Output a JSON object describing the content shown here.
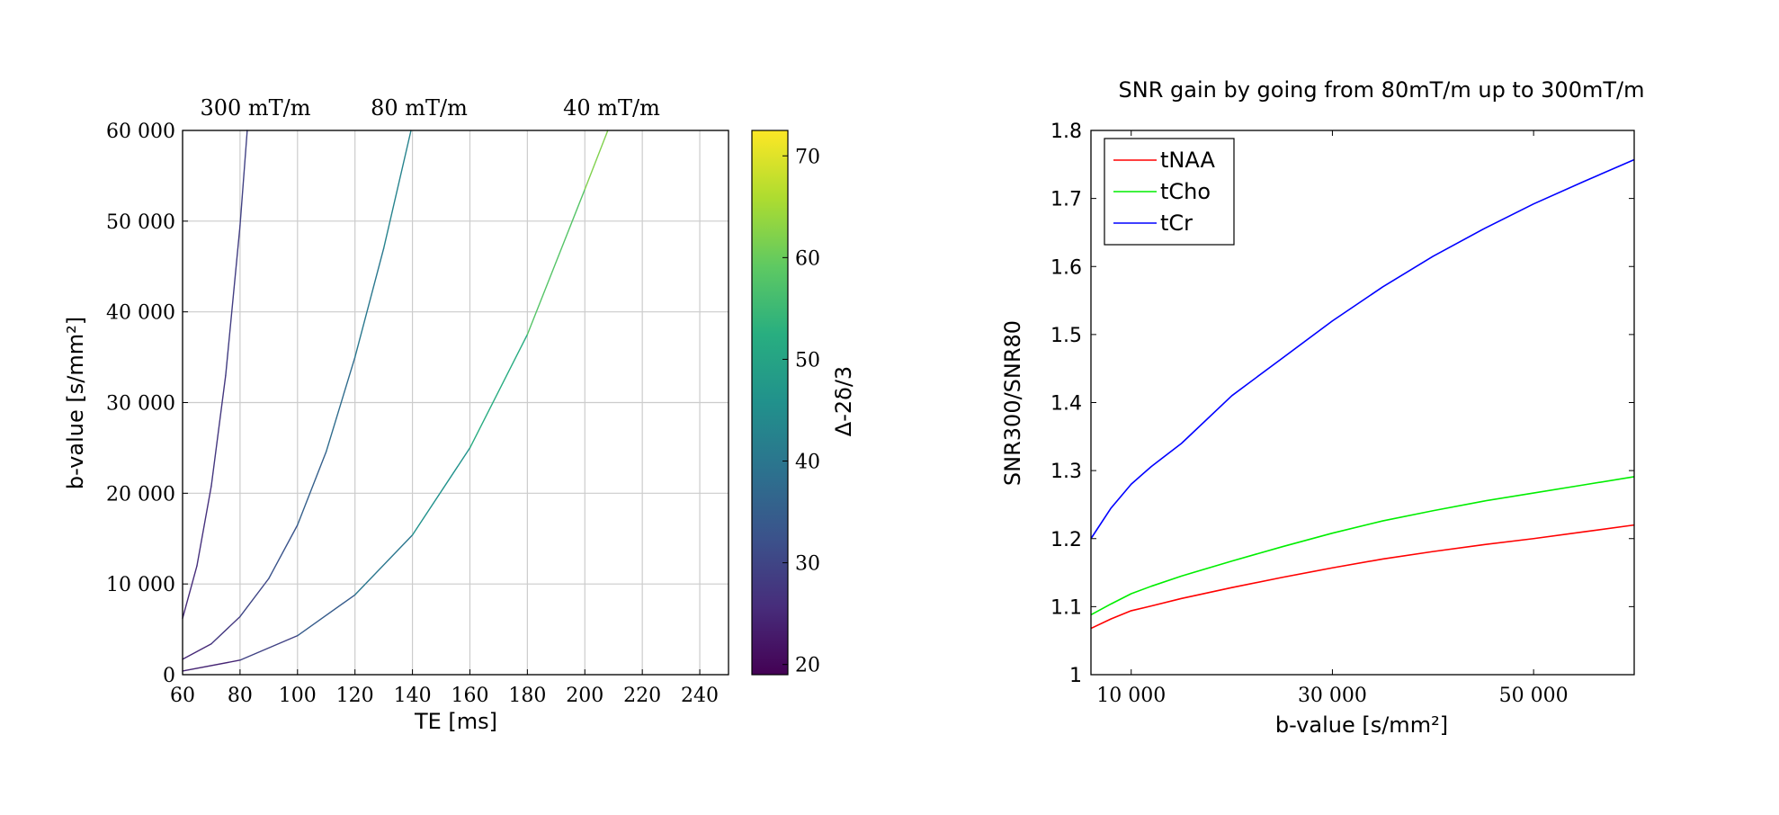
{
  "chart_data": [
    {
      "type": "line",
      "xlabel": "TE [ms]",
      "ylabel": "b-value [s/mm²]",
      "xlim": [
        60,
        250
      ],
      "ylim": [
        0,
        60000
      ],
      "xticks": [
        60,
        80,
        100,
        120,
        140,
        160,
        180,
        200,
        220,
        240
      ],
      "yticks": [
        0,
        10000,
        20000,
        30000,
        40000,
        50000,
        60000
      ],
      "xtick_labels": [
        "60",
        "80",
        "100",
        "120",
        "140",
        "160",
        "180",
        "200",
        "220",
        "240"
      ],
      "ytick_labels": [
        "0",
        "10 000",
        "20 000",
        "30 000",
        "40 000",
        "50 000",
        "60 000"
      ],
      "grid": true,
      "annotations": [
        "300 mT/m",
        "80 mT/m",
        "40 mT/m"
      ],
      "colorbar": {
        "label": "Δ-2δ/3",
        "range": [
          19,
          72.5
        ],
        "ticks": [
          20,
          30,
          40,
          50,
          60,
          70
        ],
        "tick_labels": [
          "20",
          "30",
          "40",
          "50",
          "60",
          "70"
        ],
        "colormap": "viridis"
      },
      "series": [
        {
          "x": [
            60,
            65,
            70,
            75,
            80,
            82.5
          ],
          "y": [
            6200,
            12000,
            20800,
            33000,
            49500,
            60000
          ],
          "c": [
            25,
            26,
            27,
            28,
            29,
            29.5
          ]
        },
        {
          "x": [
            60,
            70,
            80,
            90,
            100,
            110,
            120,
            130,
            139.5
          ],
          "y": [
            1700,
            3400,
            6400,
            10600,
            16500,
            24600,
            35000,
            47000,
            60000
          ],
          "c": [
            24,
            26.5,
            29,
            31.5,
            34,
            36.5,
            39,
            41.5,
            44
          ]
        },
        {
          "x": [
            60,
            80,
            100,
            120,
            140,
            160,
            180,
            200,
            208
          ],
          "y": [
            400,
            1600,
            4300,
            8800,
            15400,
            25000,
            37500,
            53500,
            60000
          ],
          "c": [
            22,
            27,
            32,
            37,
            43,
            49,
            55,
            61,
            63
          ]
        }
      ]
    },
    {
      "type": "line",
      "title": "SNR gain by going from 80mT/m up to 300mT/m",
      "xlabel": "b-value [s/mm²]",
      "ylabel": "SNR300/SNR80",
      "xlim": [
        6000,
        60000
      ],
      "ylim": [
        1,
        1.8
      ],
      "xticks": [
        10000,
        30000,
        50000
      ],
      "xtick_labels": [
        "10 000",
        "30 000",
        "50 000"
      ],
      "yticks": [
        1,
        1.1,
        1.2,
        1.3,
        1.4,
        1.5,
        1.6,
        1.7,
        1.8
      ],
      "ytick_labels": [
        "1",
        "1.1",
        "1.2",
        "1.3",
        "1.4",
        "1.5",
        "1.6",
        "1.7",
        "1.8"
      ],
      "grid": false,
      "legend_position": "top-left",
      "x": [
        6000,
        8000,
        10000,
        12000,
        15000,
        20000,
        25000,
        30000,
        35000,
        40000,
        45000,
        50000,
        55000,
        60000
      ],
      "series": [
        {
          "name": "tNAA",
          "color": "#ff0000",
          "values": [
            1.068,
            1.082,
            1.094,
            1.101,
            1.112,
            1.128,
            1.143,
            1.157,
            1.17,
            1.181,
            1.191,
            1.2,
            1.21,
            1.22
          ]
        },
        {
          "name": "tCho",
          "color": "#00ee00",
          "values": [
            1.088,
            1.104,
            1.119,
            1.13,
            1.145,
            1.167,
            1.188,
            1.208,
            1.226,
            1.241,
            1.255,
            1.267,
            1.279,
            1.291
          ]
        },
        {
          "name": "tCr",
          "color": "#0000ff",
          "values": [
            1.2,
            1.245,
            1.28,
            1.306,
            1.34,
            1.41,
            1.465,
            1.52,
            1.57,
            1.615,
            1.655,
            1.692,
            1.725,
            1.757
          ]
        }
      ]
    }
  ]
}
